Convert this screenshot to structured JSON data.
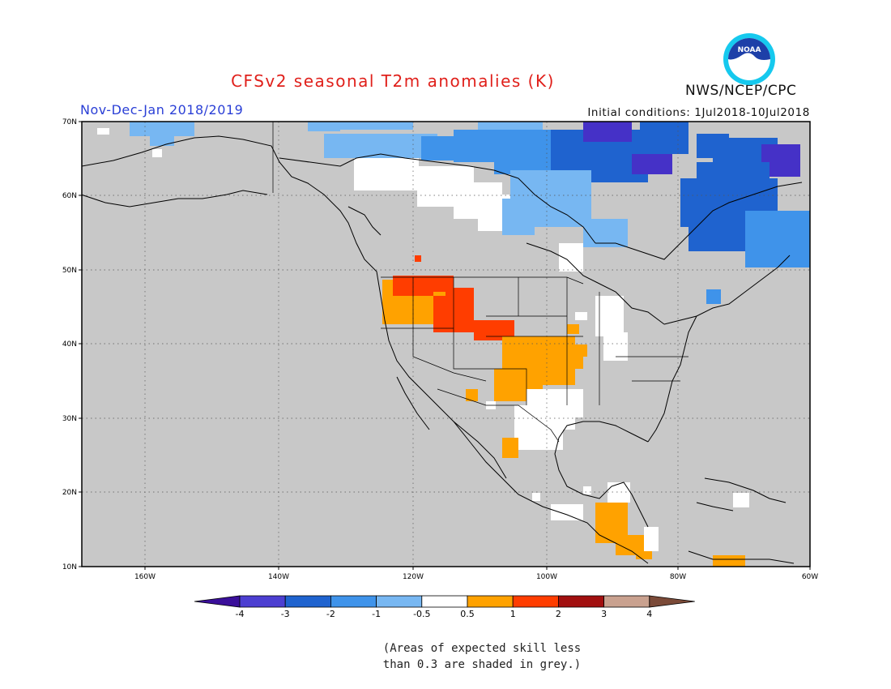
{
  "title": "CFSv2 seasonal T2m anomalies (K)",
  "agency": "NWS/NCEP/CPC",
  "logo_text": "NOAA",
  "period": "Nov-Dec-Jan 2018/2019",
  "initial_conditions": "Initial conditions: 1Jul2018-10Jul2018",
  "note_line1": "(Areas of expected skill less",
  "note_line2": "than 0.3 are shaded in grey.)",
  "colors": {
    "grey": "#c8c8c8",
    "lt_blue": "#77b7f2",
    "mid_blue": "#3f93ea",
    "blue": "#1f63cf",
    "dk_blue": "#4531c7",
    "orange": "#ffa200",
    "red": "#ff3d00",
    "title_red": "#e0201b",
    "period_blue": "#2a3fd6"
  },
  "map": {
    "lat_labels": [
      "70N",
      "60N",
      "50N",
      "40N",
      "30N",
      "20N",
      "10N"
    ],
    "lon_labels": [
      "160W",
      "140W",
      "120W",
      "100W",
      "80W",
      "60W"
    ]
  },
  "colorbar": {
    "labels": [
      "-4",
      "-3",
      "-2",
      "-1",
      "-0.5",
      "0.5",
      "1",
      "2",
      "3",
      "4"
    ],
    "colors": [
      "#3a0f9a",
      "#4c3fd1",
      "#1f63cf",
      "#3f93ea",
      "#77b7f2",
      "#ffffff",
      "#ffa200",
      "#ff3d00",
      "#a10f0f",
      "#c9a18f",
      "#7b4a38"
    ]
  }
}
